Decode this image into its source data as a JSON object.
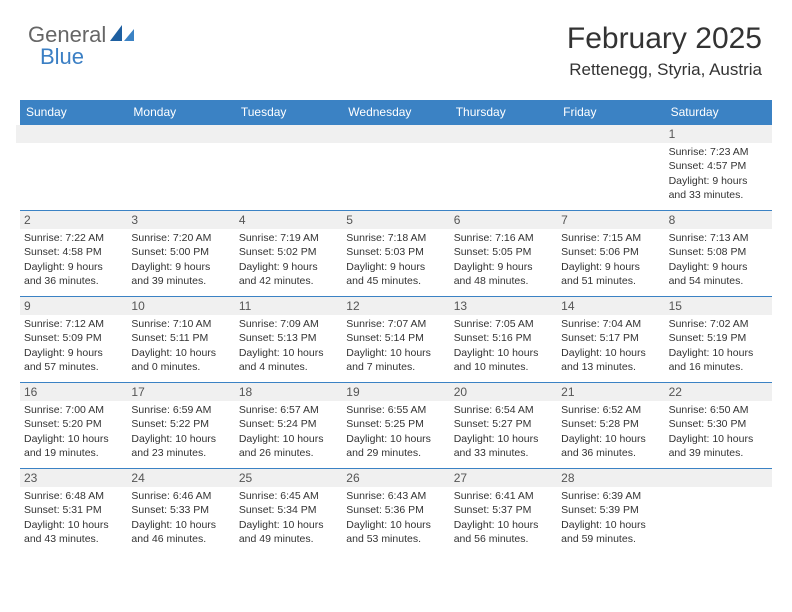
{
  "logo": {
    "part1": "General",
    "part2": "Blue"
  },
  "header": {
    "title": "February 2025",
    "location": "Rettenegg, Styria, Austria"
  },
  "colors": {
    "header_bg": "#3b82c4",
    "header_fg": "#ffffff",
    "band_bg": "#f0f0f0",
    "border": "#3b82c4",
    "text": "#333333",
    "logo_gray": "#666666",
    "logo_blue": "#3b7fc4",
    "page_bg": "#ffffff"
  },
  "weekdays": [
    "Sunday",
    "Monday",
    "Tuesday",
    "Wednesday",
    "Thursday",
    "Friday",
    "Saturday"
  ],
  "grid": [
    [
      {
        "empty": true
      },
      {
        "empty": true
      },
      {
        "empty": true
      },
      {
        "empty": true
      },
      {
        "empty": true
      },
      {
        "empty": true
      },
      {
        "day": "1",
        "sunrise": "Sunrise: 7:23 AM",
        "sunset": "Sunset: 4:57 PM",
        "daylight1": "Daylight: 9 hours",
        "daylight2": "and 33 minutes."
      }
    ],
    [
      {
        "day": "2",
        "sunrise": "Sunrise: 7:22 AM",
        "sunset": "Sunset: 4:58 PM",
        "daylight1": "Daylight: 9 hours",
        "daylight2": "and 36 minutes."
      },
      {
        "day": "3",
        "sunrise": "Sunrise: 7:20 AM",
        "sunset": "Sunset: 5:00 PM",
        "daylight1": "Daylight: 9 hours",
        "daylight2": "and 39 minutes."
      },
      {
        "day": "4",
        "sunrise": "Sunrise: 7:19 AM",
        "sunset": "Sunset: 5:02 PM",
        "daylight1": "Daylight: 9 hours",
        "daylight2": "and 42 minutes."
      },
      {
        "day": "5",
        "sunrise": "Sunrise: 7:18 AM",
        "sunset": "Sunset: 5:03 PM",
        "daylight1": "Daylight: 9 hours",
        "daylight2": "and 45 minutes."
      },
      {
        "day": "6",
        "sunrise": "Sunrise: 7:16 AM",
        "sunset": "Sunset: 5:05 PM",
        "daylight1": "Daylight: 9 hours",
        "daylight2": "and 48 minutes."
      },
      {
        "day": "7",
        "sunrise": "Sunrise: 7:15 AM",
        "sunset": "Sunset: 5:06 PM",
        "daylight1": "Daylight: 9 hours",
        "daylight2": "and 51 minutes."
      },
      {
        "day": "8",
        "sunrise": "Sunrise: 7:13 AM",
        "sunset": "Sunset: 5:08 PM",
        "daylight1": "Daylight: 9 hours",
        "daylight2": "and 54 minutes."
      }
    ],
    [
      {
        "day": "9",
        "sunrise": "Sunrise: 7:12 AM",
        "sunset": "Sunset: 5:09 PM",
        "daylight1": "Daylight: 9 hours",
        "daylight2": "and 57 minutes."
      },
      {
        "day": "10",
        "sunrise": "Sunrise: 7:10 AM",
        "sunset": "Sunset: 5:11 PM",
        "daylight1": "Daylight: 10 hours",
        "daylight2": "and 0 minutes."
      },
      {
        "day": "11",
        "sunrise": "Sunrise: 7:09 AM",
        "sunset": "Sunset: 5:13 PM",
        "daylight1": "Daylight: 10 hours",
        "daylight2": "and 4 minutes."
      },
      {
        "day": "12",
        "sunrise": "Sunrise: 7:07 AM",
        "sunset": "Sunset: 5:14 PM",
        "daylight1": "Daylight: 10 hours",
        "daylight2": "and 7 minutes."
      },
      {
        "day": "13",
        "sunrise": "Sunrise: 7:05 AM",
        "sunset": "Sunset: 5:16 PM",
        "daylight1": "Daylight: 10 hours",
        "daylight2": "and 10 minutes."
      },
      {
        "day": "14",
        "sunrise": "Sunrise: 7:04 AM",
        "sunset": "Sunset: 5:17 PM",
        "daylight1": "Daylight: 10 hours",
        "daylight2": "and 13 minutes."
      },
      {
        "day": "15",
        "sunrise": "Sunrise: 7:02 AM",
        "sunset": "Sunset: 5:19 PM",
        "daylight1": "Daylight: 10 hours",
        "daylight2": "and 16 minutes."
      }
    ],
    [
      {
        "day": "16",
        "sunrise": "Sunrise: 7:00 AM",
        "sunset": "Sunset: 5:20 PM",
        "daylight1": "Daylight: 10 hours",
        "daylight2": "and 19 minutes."
      },
      {
        "day": "17",
        "sunrise": "Sunrise: 6:59 AM",
        "sunset": "Sunset: 5:22 PM",
        "daylight1": "Daylight: 10 hours",
        "daylight2": "and 23 minutes."
      },
      {
        "day": "18",
        "sunrise": "Sunrise: 6:57 AM",
        "sunset": "Sunset: 5:24 PM",
        "daylight1": "Daylight: 10 hours",
        "daylight2": "and 26 minutes."
      },
      {
        "day": "19",
        "sunrise": "Sunrise: 6:55 AM",
        "sunset": "Sunset: 5:25 PM",
        "daylight1": "Daylight: 10 hours",
        "daylight2": "and 29 minutes."
      },
      {
        "day": "20",
        "sunrise": "Sunrise: 6:54 AM",
        "sunset": "Sunset: 5:27 PM",
        "daylight1": "Daylight: 10 hours",
        "daylight2": "and 33 minutes."
      },
      {
        "day": "21",
        "sunrise": "Sunrise: 6:52 AM",
        "sunset": "Sunset: 5:28 PM",
        "daylight1": "Daylight: 10 hours",
        "daylight2": "and 36 minutes."
      },
      {
        "day": "22",
        "sunrise": "Sunrise: 6:50 AM",
        "sunset": "Sunset: 5:30 PM",
        "daylight1": "Daylight: 10 hours",
        "daylight2": "and 39 minutes."
      }
    ],
    [
      {
        "day": "23",
        "sunrise": "Sunrise: 6:48 AM",
        "sunset": "Sunset: 5:31 PM",
        "daylight1": "Daylight: 10 hours",
        "daylight2": "and 43 minutes."
      },
      {
        "day": "24",
        "sunrise": "Sunrise: 6:46 AM",
        "sunset": "Sunset: 5:33 PM",
        "daylight1": "Daylight: 10 hours",
        "daylight2": "and 46 minutes."
      },
      {
        "day": "25",
        "sunrise": "Sunrise: 6:45 AM",
        "sunset": "Sunset: 5:34 PM",
        "daylight1": "Daylight: 10 hours",
        "daylight2": "and 49 minutes."
      },
      {
        "day": "26",
        "sunrise": "Sunrise: 6:43 AM",
        "sunset": "Sunset: 5:36 PM",
        "daylight1": "Daylight: 10 hours",
        "daylight2": "and 53 minutes."
      },
      {
        "day": "27",
        "sunrise": "Sunrise: 6:41 AM",
        "sunset": "Sunset: 5:37 PM",
        "daylight1": "Daylight: 10 hours",
        "daylight2": "and 56 minutes."
      },
      {
        "day": "28",
        "sunrise": "Sunrise: 6:39 AM",
        "sunset": "Sunset: 5:39 PM",
        "daylight1": "Daylight: 10 hours",
        "daylight2": "and 59 minutes."
      },
      {
        "empty": true,
        "tail": true
      }
    ]
  ]
}
